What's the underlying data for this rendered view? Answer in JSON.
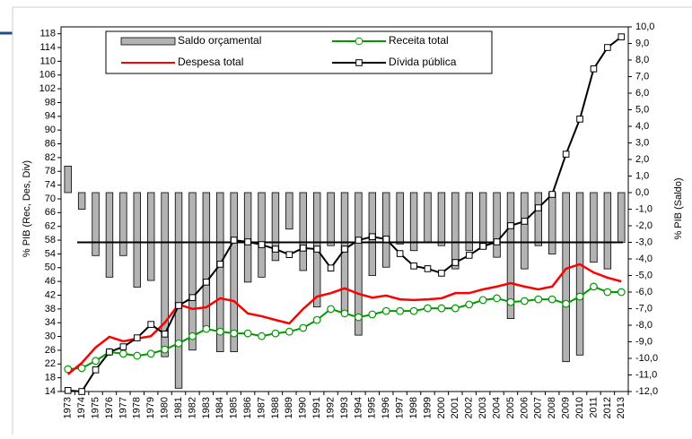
{
  "chart_data": {
    "type": "bar_line_combo",
    "y_label": "% PIB (Rec, Des, Div)",
    "y2_label": "% PIB (Saldo)",
    "categories": [
      "1973",
      "1974",
      "1975",
      "1976",
      "1977",
      "1978",
      "1979",
      "1980",
      "1981",
      "1982",
      "1983",
      "1984",
      "1985",
      "1986",
      "1987",
      "1988",
      "1989",
      "1990",
      "1991",
      "1992",
      "1993",
      "1994",
      "1995",
      "1996",
      "1997",
      "1998",
      "1999",
      "2000",
      "2001",
      "2002",
      "2003",
      "2004",
      "2005",
      "2006",
      "2007",
      "2008",
      "2009",
      "2010",
      "2011",
      "2012",
      "2013"
    ],
    "ylim": [
      14,
      120
    ],
    "yticks": [
      14,
      18,
      22,
      26,
      30,
      34,
      38,
      42,
      46,
      50,
      54,
      58,
      62,
      66,
      70,
      74,
      78,
      82,
      86,
      90,
      94,
      98,
      102,
      106,
      110,
      114,
      118
    ],
    "y2lim": [
      -12,
      10
    ],
    "y2ticks": [
      {
        "value": 10,
        "label": "10,0"
      },
      {
        "value": 9,
        "label": "9,0"
      },
      {
        "value": 8,
        "label": "8,0"
      },
      {
        "value": 7,
        "label": "7,0"
      },
      {
        "value": 6,
        "label": "6,0"
      },
      {
        "value": 5,
        "label": "5,0"
      },
      {
        "value": 4,
        "label": "4,0"
      },
      {
        "value": 3,
        "label": "3,0"
      },
      {
        "value": 2,
        "label": "2,0"
      },
      {
        "value": 1,
        "label": "1,0"
      },
      {
        "value": 0,
        "label": "0,0"
      },
      {
        "value": -1,
        "label": "-1,0"
      },
      {
        "value": -2,
        "label": "-2,0"
      },
      {
        "value": -3,
        "label": "-3,0"
      },
      {
        "value": -4,
        "label": "-4,0"
      },
      {
        "value": -5,
        "label": "-5,0"
      },
      {
        "value": -6,
        "label": "-6,0"
      },
      {
        "value": -7,
        "label": "-7,0"
      },
      {
        "value": -8,
        "label": "-8,0"
      },
      {
        "value": -9,
        "label": "-9,0"
      },
      {
        "value": -10,
        "label": "-10,0"
      },
      {
        "value": -11,
        "label": "-11,0"
      },
      {
        "value": -12,
        "label": "-12,0"
      }
    ],
    "y2_reference": -3,
    "series": [
      {
        "name": "Saldo orçamental",
        "type": "bar",
        "axis": "y2",
        "color": "#b3b3b3",
        "values": [
          1.6,
          -1.0,
          -3.8,
          -5.1,
          -3.8,
          -5.7,
          -5.3,
          -9.9,
          -11.8,
          -9.5,
          -8.1,
          -9.6,
          -9.6,
          -5.4,
          -5.1,
          -4.1,
          -2.2,
          -4.7,
          -6.9,
          -3.2,
          -7.2,
          -8.6,
          -5.0,
          -4.5,
          -3.1,
          -3.5,
          -3.0,
          -3.2,
          -4.6,
          -3.5,
          -3.4,
          -3.9,
          -7.6,
          -4.6,
          -3.2,
          -3.7,
          -10.2,
          -9.8,
          -4.2,
          -4.6,
          -3.0
        ]
      },
      {
        "name": "Receita total",
        "type": "line",
        "marker": "circle",
        "color": "#009900",
        "values": [
          20.5,
          20.8,
          22.9,
          25.5,
          25,
          24.4,
          25,
          26.2,
          28,
          30.1,
          32.2,
          31.4,
          30.9,
          30.9,
          30.1,
          30.9,
          31.4,
          32.5,
          34.8,
          38,
          36.7,
          35.6,
          36.4,
          37.4,
          37.4,
          37.4,
          38.2,
          38.2,
          38.2,
          39.3,
          40.6,
          41.1,
          40,
          40.3,
          40.8,
          40.8,
          39.5,
          41.6,
          44.5,
          42.9,
          42.9
        ]
      },
      {
        "name": "Despesa total",
        "type": "line",
        "marker": "none",
        "color": "#ff0000",
        "values": [
          19,
          22.3,
          26.8,
          29.9,
          28.6,
          29.4,
          30.1,
          34,
          39.3,
          38,
          38.5,
          41.1,
          40.3,
          36.7,
          35.9,
          34.8,
          33.8,
          38,
          41.6,
          42.6,
          44,
          42.4,
          41.3,
          41.9,
          40.8,
          40.6,
          40.8,
          41.1,
          42.6,
          42.6,
          43.7,
          44.5,
          45.5,
          44.5,
          43.7,
          44.5,
          49.7,
          51,
          48.6,
          47.1,
          46
        ]
      },
      {
        "name": "Dívida pública",
        "type": "line",
        "marker": "square",
        "color": "#000000",
        "values": [
          14.3,
          14,
          20.3,
          25.5,
          27,
          29.6,
          33.5,
          30.7,
          39,
          41.3,
          45.8,
          51,
          58,
          57.5,
          56.7,
          55.4,
          53.8,
          55.7,
          55.4,
          49.9,
          55.4,
          58,
          59,
          58.3,
          54.1,
          50.5,
          49.7,
          48.4,
          51.5,
          53.6,
          56.2,
          57.5,
          62.2,
          63.5,
          67.4,
          71.3,
          83,
          93.2,
          107.8,
          114,
          117.1
        ]
      }
    ]
  }
}
